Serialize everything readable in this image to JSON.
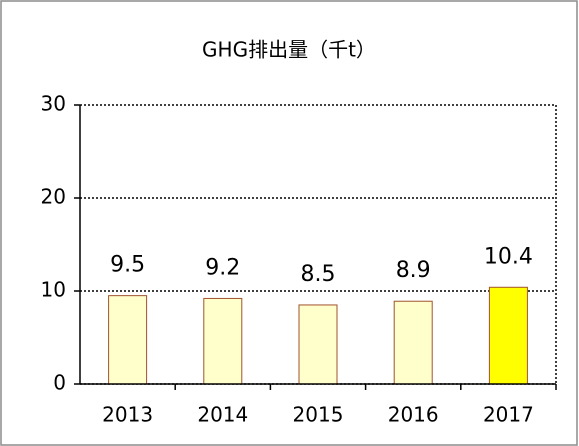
{
  "chart_data": {
    "type": "bar",
    "title": "GHG排出量（千t）",
    "categories": [
      "2013",
      "2014",
      "2015",
      "2016",
      "2017"
    ],
    "values": [
      9.5,
      9.2,
      8.5,
      8.9,
      10.4
    ],
    "colors": [
      "#ffffcc",
      "#ffffcc",
      "#ffffcc",
      "#ffffcc",
      "#ffff00"
    ],
    "ylim": [
      0,
      30
    ],
    "yticks": [
      0,
      10,
      20,
      30
    ],
    "grid": true
  }
}
